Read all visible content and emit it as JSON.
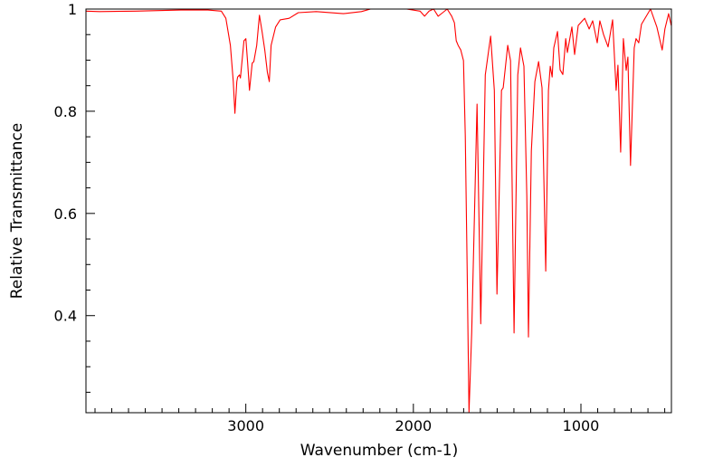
{
  "chart_data": {
    "type": "line",
    "title": "",
    "xlabel": "Wavenumber (cm-1)",
    "ylabel": "Relative Transmittance",
    "xlim": [
      3954,
      460
    ],
    "ylim": [
      0.21,
      1.0
    ],
    "x_reversed": true,
    "grid": false,
    "x_ticks": [
      3000,
      2000,
      1000
    ],
    "x_tick_labels": [
      "3000",
      "2000",
      "1000"
    ],
    "x_minor_step": 100,
    "y_ticks": [
      0.4,
      0.6,
      0.8,
      1
    ],
    "y_tick_labels": [
      "0.4",
      "0.6",
      "0.8",
      "1"
    ],
    "y_minor_step": 0.05,
    "series": [
      {
        "name": "spectrum",
        "color": "#ff0000",
        "points": [
          [
            3954,
            0.996
          ],
          [
            3873,
            0.995
          ],
          [
            3658,
            0.996
          ],
          [
            3388,
            0.998
          ],
          [
            3226,
            0.998
          ],
          [
            3146,
            0.996
          ],
          [
            3119,
            0.982
          ],
          [
            3092,
            0.929
          ],
          [
            3075,
            0.858
          ],
          [
            3065,
            0.796
          ],
          [
            3054,
            0.858
          ],
          [
            3049,
            0.867
          ],
          [
            3038,
            0.871
          ],
          [
            3032,
            0.865
          ],
          [
            3011,
            0.938
          ],
          [
            3000,
            0.942
          ],
          [
            2989,
            0.894
          ],
          [
            2978,
            0.841
          ],
          [
            2962,
            0.894
          ],
          [
            2952,
            0.897
          ],
          [
            2935,
            0.929
          ],
          [
            2919,
            0.988
          ],
          [
            2903,
            0.956
          ],
          [
            2887,
            0.92
          ],
          [
            2871,
            0.876
          ],
          [
            2860,
            0.858
          ],
          [
            2849,
            0.929
          ],
          [
            2822,
            0.965
          ],
          [
            2795,
            0.979
          ],
          [
            2741,
            0.982
          ],
          [
            2687,
            0.993
          ],
          [
            2580,
            0.995
          ],
          [
            2418,
            0.991
          ],
          [
            2310,
            0.995
          ],
          [
            2256,
            1.0
          ],
          [
            2040,
            1.0
          ],
          [
            1960,
            0.996
          ],
          [
            1933,
            0.986
          ],
          [
            1906,
            0.996
          ],
          [
            1879,
            1.0
          ],
          [
            1852,
            0.986
          ],
          [
            1825,
            0.993
          ],
          [
            1798,
            1.0
          ],
          [
            1771,
            0.986
          ],
          [
            1755,
            0.973
          ],
          [
            1744,
            0.938
          ],
          [
            1733,
            0.929
          ],
          [
            1717,
            0.92
          ],
          [
            1701,
            0.899
          ],
          [
            1690,
            0.752
          ],
          [
            1679,
            0.487
          ],
          [
            1668,
            0.21
          ],
          [
            1652,
            0.368
          ],
          [
            1620,
            0.814
          ],
          [
            1598,
            0.384
          ],
          [
            1571,
            0.871
          ],
          [
            1539,
            0.947
          ],
          [
            1517,
            0.841
          ],
          [
            1501,
            0.442
          ],
          [
            1474,
            0.841
          ],
          [
            1464,
            0.846
          ],
          [
            1437,
            0.929
          ],
          [
            1420,
            0.899
          ],
          [
            1399,
            0.366
          ],
          [
            1377,
            0.871
          ],
          [
            1361,
            0.924
          ],
          [
            1340,
            0.888
          ],
          [
            1323,
            0.634
          ],
          [
            1313,
            0.358
          ],
          [
            1296,
            0.722
          ],
          [
            1275,
            0.858
          ],
          [
            1253,
            0.897
          ],
          [
            1232,
            0.846
          ],
          [
            1210,
            0.487
          ],
          [
            1194,
            0.841
          ],
          [
            1183,
            0.888
          ],
          [
            1172,
            0.867
          ],
          [
            1162,
            0.924
          ],
          [
            1140,
            0.956
          ],
          [
            1124,
            0.881
          ],
          [
            1108,
            0.872
          ],
          [
            1091,
            0.942
          ],
          [
            1081,
            0.915
          ],
          [
            1054,
            0.965
          ],
          [
            1038,
            0.911
          ],
          [
            1016,
            0.968
          ],
          [
            978,
            0.982
          ],
          [
            951,
            0.961
          ],
          [
            930,
            0.977
          ],
          [
            903,
            0.934
          ],
          [
            887,
            0.977
          ],
          [
            865,
            0.95
          ],
          [
            838,
            0.926
          ],
          [
            811,
            0.979
          ],
          [
            790,
            0.841
          ],
          [
            779,
            0.89
          ],
          [
            763,
            0.72
          ],
          [
            747,
            0.942
          ],
          [
            730,
            0.88
          ],
          [
            720,
            0.906
          ],
          [
            704,
            0.694
          ],
          [
            682,
            0.924
          ],
          [
            671,
            0.942
          ],
          [
            655,
            0.934
          ],
          [
            639,
            0.97
          ],
          [
            585,
            1.0
          ],
          [
            547,
            0.965
          ],
          [
            515,
            0.92
          ],
          [
            499,
            0.961
          ],
          [
            477,
            0.991
          ],
          [
            461,
            0.968
          ]
        ]
      }
    ]
  }
}
